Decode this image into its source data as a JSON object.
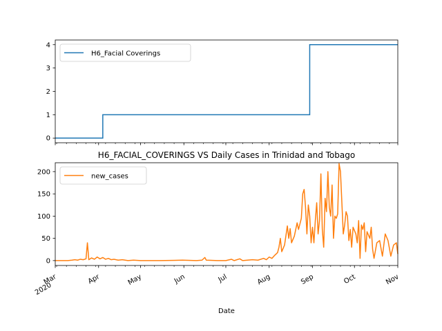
{
  "chart_data": [
    {
      "type": "line",
      "title": "",
      "xlabel": "",
      "ylabel": "",
      "ylim": [
        -0.2,
        4.2
      ],
      "yticks": [
        "0",
        "1",
        "2",
        "3",
        "4"
      ],
      "legend": {
        "placement": "upper-left"
      },
      "series": [
        {
          "name": "H6_Facial Coverings",
          "color": "#1f77b4",
          "steps": [
            {
              "from": "2020-03-01",
              "value": 0
            },
            {
              "from": "2020-04-04",
              "value": 1
            },
            {
              "from": "2020-08-30",
              "value": 4
            }
          ]
        }
      ]
    },
    {
      "type": "line",
      "title": "H6_FACIAL_COVERINGS VS Daily Cases in Trinidad and Tobago",
      "xlabel": "Date",
      "ylabel": "",
      "ylim": [
        -11,
        220
      ],
      "yticks": [
        "0",
        "50",
        "100",
        "150",
        "200"
      ],
      "xticks": [
        {
          "date": "2020-03-01",
          "label": "Mar",
          "sublabel": "2020"
        },
        {
          "date": "2020-04-01",
          "label": "Apr",
          "sublabel": ""
        },
        {
          "date": "2020-05-01",
          "label": "May",
          "sublabel": ""
        },
        {
          "date": "2020-06-01",
          "label": "Jun",
          "sublabel": ""
        },
        {
          "date": "2020-07-01",
          "label": "Jul",
          "sublabel": ""
        },
        {
          "date": "2020-08-01",
          "label": "Aug",
          "sublabel": ""
        },
        {
          "date": "2020-09-01",
          "label": "Sep",
          "sublabel": ""
        },
        {
          "date": "2020-10-01",
          "label": "Oct",
          "sublabel": ""
        },
        {
          "date": "2020-11-01",
          "label": "Nov",
          "sublabel": ""
        }
      ],
      "legend": {
        "placement": "upper-left"
      },
      "series": [
        {
          "name": "new_cases",
          "color": "#ff7f0e",
          "points": [
            [
              "2020-03-01",
              0
            ],
            [
              "2020-03-10",
              0
            ],
            [
              "2020-03-13",
              1
            ],
            [
              "2020-03-15",
              2
            ],
            [
              "2020-03-17",
              1
            ],
            [
              "2020-03-19",
              3
            ],
            [
              "2020-03-21",
              2
            ],
            [
              "2020-03-23",
              4
            ],
            [
              "2020-03-24",
              40
            ],
            [
              "2020-03-25",
              2
            ],
            [
              "2020-03-27",
              6
            ],
            [
              "2020-03-29",
              3
            ],
            [
              "2020-03-31",
              8
            ],
            [
              "2020-04-02",
              4
            ],
            [
              "2020-04-04",
              7
            ],
            [
              "2020-04-06",
              3
            ],
            [
              "2020-04-08",
              5
            ],
            [
              "2020-04-10",
              2
            ],
            [
              "2020-04-12",
              3
            ],
            [
              "2020-04-15",
              1
            ],
            [
              "2020-04-18",
              2
            ],
            [
              "2020-04-22",
              0
            ],
            [
              "2020-04-26",
              1
            ],
            [
              "2020-05-01",
              0
            ],
            [
              "2020-05-15",
              0
            ],
            [
              "2020-05-31",
              1
            ],
            [
              "2020-06-10",
              0
            ],
            [
              "2020-06-14",
              1
            ],
            [
              "2020-06-16",
              7
            ],
            [
              "2020-06-17",
              1
            ],
            [
              "2020-06-25",
              0
            ],
            [
              "2020-07-01",
              0
            ],
            [
              "2020-07-05",
              3
            ],
            [
              "2020-07-07",
              0
            ],
            [
              "2020-07-11",
              4
            ],
            [
              "2020-07-13",
              0
            ],
            [
              "2020-07-20",
              2
            ],
            [
              "2020-07-24",
              1
            ],
            [
              "2020-07-28",
              5
            ],
            [
              "2020-07-30",
              2
            ],
            [
              "2020-08-01",
              8
            ],
            [
              "2020-08-03",
              5
            ],
            [
              "2020-08-05",
              12
            ],
            [
              "2020-08-07",
              18
            ],
            [
              "2020-08-08",
              30
            ],
            [
              "2020-08-09",
              50
            ],
            [
              "2020-08-10",
              20
            ],
            [
              "2020-08-12",
              35
            ],
            [
              "2020-08-14",
              78
            ],
            [
              "2020-08-15",
              50
            ],
            [
              "2020-08-16",
              72
            ],
            [
              "2020-08-17",
              40
            ],
            [
              "2020-08-19",
              55
            ],
            [
              "2020-08-21",
              85
            ],
            [
              "2020-08-22",
              70
            ],
            [
              "2020-08-24",
              95
            ],
            [
              "2020-08-25",
              150
            ],
            [
              "2020-08-26",
              160
            ],
            [
              "2020-08-27",
              120
            ],
            [
              "2020-08-28",
              60
            ],
            [
              "2020-08-29",
              125
            ],
            [
              "2020-08-30",
              100
            ],
            [
              "2020-08-31",
              40
            ],
            [
              "2020-09-01",
              75
            ],
            [
              "2020-09-02",
              40
            ],
            [
              "2020-09-03",
              90
            ],
            [
              "2020-09-04",
              130
            ],
            [
              "2020-09-05",
              60
            ],
            [
              "2020-09-06",
              90
            ],
            [
              "2020-09-07",
              195
            ],
            [
              "2020-09-08",
              70
            ],
            [
              "2020-09-09",
              30
            ],
            [
              "2020-09-10",
              140
            ],
            [
              "2020-09-11",
              110
            ],
            [
              "2020-09-12",
              200
            ],
            [
              "2020-09-13",
              120
            ],
            [
              "2020-09-14",
              100
            ],
            [
              "2020-09-15",
              170
            ],
            [
              "2020-09-16",
              50
            ],
            [
              "2020-09-17",
              100
            ],
            [
              "2020-09-18",
              95
            ],
            [
              "2020-09-19",
              105
            ],
            [
              "2020-09-20",
              218
            ],
            [
              "2020-09-21",
              200
            ],
            [
              "2020-09-22",
              130
            ],
            [
              "2020-09-23",
              60
            ],
            [
              "2020-09-24",
              80
            ],
            [
              "2020-09-25",
              110
            ],
            [
              "2020-09-26",
              100
            ],
            [
              "2020-09-27",
              45
            ],
            [
              "2020-09-28",
              70
            ],
            [
              "2020-09-29",
              30
            ],
            [
              "2020-09-30",
              75
            ],
            [
              "2020-10-02",
              60
            ],
            [
              "2020-10-03",
              40
            ],
            [
              "2020-10-04",
              90
            ],
            [
              "2020-10-05",
              5
            ],
            [
              "2020-10-06",
              80
            ],
            [
              "2020-10-07",
              70
            ],
            [
              "2020-10-08",
              85
            ],
            [
              "2020-10-09",
              20
            ],
            [
              "2020-10-10",
              65
            ],
            [
              "2020-10-12",
              50
            ],
            [
              "2020-10-13",
              75
            ],
            [
              "2020-10-14",
              25
            ],
            [
              "2020-10-15",
              5
            ],
            [
              "2020-10-17",
              40
            ],
            [
              "2020-10-19",
              45
            ],
            [
              "2020-10-21",
              10
            ],
            [
              "2020-10-23",
              60
            ],
            [
              "2020-10-25",
              45
            ],
            [
              "2020-10-27",
              10
            ],
            [
              "2020-10-29",
              35
            ],
            [
              "2020-10-31",
              40
            ],
            [
              "2020-11-01",
              15
            ]
          ]
        }
      ]
    }
  ]
}
